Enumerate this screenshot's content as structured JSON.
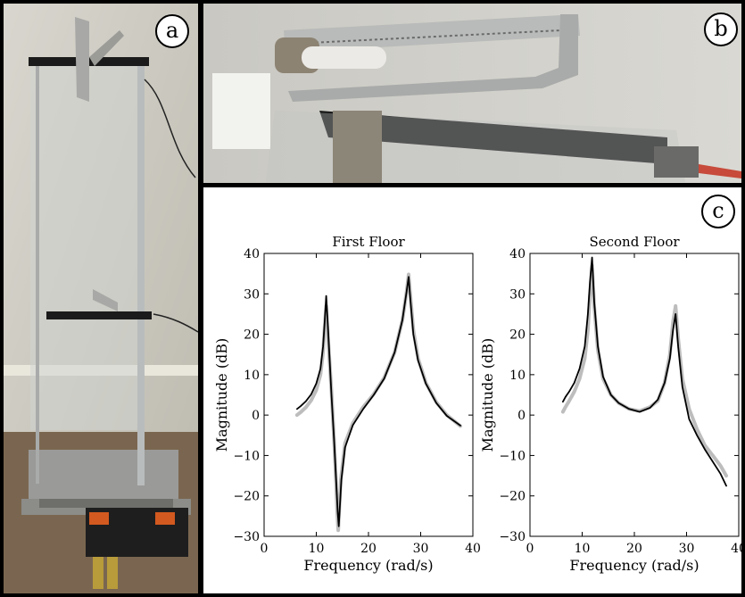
{
  "panels": {
    "a": {
      "label": "a"
    },
    "b": {
      "label": "b"
    },
    "c": {
      "label": "c"
    }
  },
  "colors": {
    "measured": "#bdbdbd",
    "model": "#000000"
  },
  "chart_data": [
    {
      "type": "line",
      "title": "First Floor",
      "xlabel": "Frequency (rad/s)",
      "ylabel": "Magnitude (dB)",
      "xlim": [
        0,
        40
      ],
      "ylim": [
        -30,
        40
      ],
      "xticks": [
        "0",
        "10",
        "20",
        "30",
        "40"
      ],
      "yticks": [
        "−30",
        "−20",
        "−10",
        "0",
        "10",
        "20",
        "30",
        "40"
      ],
      "grid": false,
      "series": [
        {
          "role": "measured",
          "x": [
            6.3,
            7,
            8,
            9,
            10,
            10.8,
            11.3,
            11.6,
            11.9,
            12.3,
            12.9,
            13.4,
            13.8,
            14.0,
            14.2,
            14.7,
            15.5,
            17,
            19,
            21,
            23,
            25,
            26.5,
            27.3,
            27.7,
            28.0,
            28.6,
            29.5,
            31,
            33,
            35,
            37.6
          ],
          "y": [
            0,
            0.7,
            1.9,
            3.6,
            6.2,
            10,
            15.5,
            22,
            27,
            18,
            6,
            -6,
            -17,
            -24,
            -28.5,
            -16,
            -7,
            -2,
            2,
            5.2,
            9.2,
            15.5,
            23.5,
            30.5,
            34.8,
            30,
            21,
            14,
            8,
            3.2,
            0,
            -2.7
          ]
        },
        {
          "role": "model",
          "x": [
            6.3,
            7,
            8,
            9,
            10,
            10.8,
            11.3,
            11.6,
            11.9,
            12.3,
            12.9,
            13.4,
            13.8,
            14.1,
            14.3,
            14.8,
            15.5,
            17,
            19,
            21,
            23,
            25,
            26.5,
            27.3,
            27.7,
            28.0,
            28.6,
            29.5,
            31,
            33,
            35,
            37.6
          ],
          "y": [
            1.5,
            2.2,
            3.4,
            5.1,
            7.8,
            11.5,
            17,
            23,
            29.5,
            20,
            5,
            -6,
            -16,
            -24,
            -27.5,
            -16,
            -8,
            -2.5,
            1.5,
            5,
            9,
            15.5,
            23.5,
            30.5,
            34.2,
            29,
            20,
            13.5,
            7.8,
            3,
            -0.2,
            -2.6
          ]
        }
      ]
    },
    {
      "type": "line",
      "title": "Second Floor",
      "xlabel": "Frequency (rad/s)",
      "ylabel": "Magnitude (dB)",
      "xlim": [
        0,
        40
      ],
      "ylim": [
        -30,
        40
      ],
      "xticks": [
        "0",
        "10",
        "20",
        "30",
        "40"
      ],
      "yticks": [
        "−30",
        "−20",
        "−10",
        "0",
        "10",
        "20",
        "30",
        "40"
      ],
      "grid": false,
      "series": [
        {
          "role": "measured",
          "x": [
            6.3,
            6.8,
            7.5,
            8.5,
            9.5,
            10.5,
            11.1,
            11.5,
            11.9,
            12.3,
            13,
            14,
            15.5,
            17,
            19,
            21,
            23,
            24.5,
            25.8,
            26.8,
            27.4,
            27.9,
            28.4,
            29.2,
            30.5,
            32,
            33.5,
            35,
            36.5,
            37.6
          ],
          "y": [
            0.8,
            2,
            3.5,
            5.8,
            9,
            14,
            21,
            30,
            37,
            27,
            16,
            9,
            5,
            3,
            1.5,
            1,
            2,
            3.5,
            8,
            15,
            23,
            27,
            19,
            9,
            1.5,
            -3.5,
            -7.5,
            -10,
            -12.5,
            -15
          ]
        },
        {
          "role": "model",
          "x": [
            6.3,
            6.8,
            7.5,
            8.5,
            9.5,
            10.5,
            11.1,
            11.5,
            11.9,
            12.3,
            13,
            14,
            15.5,
            17,
            19,
            21,
            23,
            24.5,
            25.8,
            26.8,
            27.4,
            27.9,
            28.4,
            29.2,
            30.5,
            32,
            33.5,
            35,
            36.5,
            37.6
          ],
          "y": [
            3.3,
            4.5,
            5.8,
            8,
            11.5,
            17,
            25,
            33,
            39,
            28,
            17,
            9.5,
            5,
            3,
            1.5,
            0.8,
            1.8,
            3.8,
            8,
            14,
            21,
            25,
            17,
            7,
            -1,
            -5,
            -8.5,
            -11.5,
            -14.5,
            -17.5
          ]
        }
      ]
    }
  ]
}
